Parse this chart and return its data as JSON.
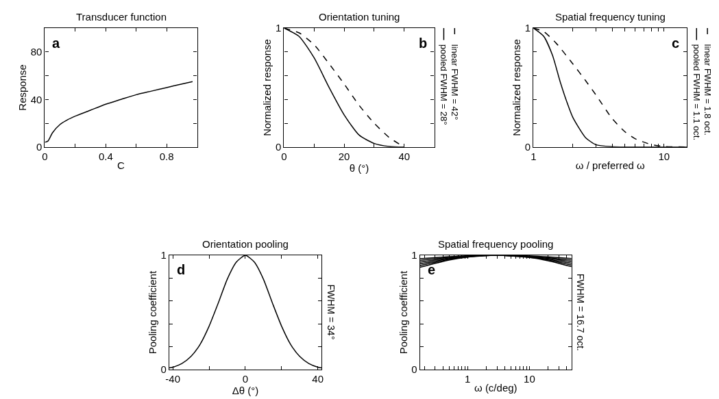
{
  "chart_data": [
    {
      "type": "line",
      "title": "Transducer function",
      "xlabel": "C",
      "ylabel": "Response",
      "xlim": [
        0,
        1
      ],
      "xticks": [
        0,
        {
          "value": 0.2,
          "label": null
        },
        0.4,
        {
          "value": 0.6,
          "label": null
        },
        0.8,
        {
          "value": 1,
          "label": null
        }
      ],
      "ylim": [
        0,
        100
      ],
      "yticks": [
        0,
        {
          "value": 20,
          "label": null
        },
        40,
        {
          "value": 60,
          "label": null
        },
        80,
        {
          "value": 100,
          "label": null
        }
      ],
      "annotations": [
        "a"
      ],
      "series": [
        {
          "color": "#000000",
          "line_style": "solid",
          "x": [
            0,
            0.02,
            0.05,
            0.1,
            0.15,
            0.2,
            0.3,
            0.4,
            0.5,
            0.6,
            0.7,
            0.8,
            0.9,
            0.97
          ],
          "values": [
            4,
            5,
            12,
            19,
            23,
            26,
            31,
            36,
            40,
            44,
            47,
            50,
            53,
            55
          ]
        }
      ]
    },
    {
      "type": "line",
      "title": "Orientation tuning",
      "xlabel": "θ (°)",
      "ylabel": "Normalized response",
      "legend": "right",
      "xlim": [
        0,
        50
      ],
      "xticks": [
        0,
        {
          "value": 10,
          "label": null
        },
        20,
        {
          "value": 30,
          "label": null
        },
        40,
        {
          "value": 50,
          "label": null
        }
      ],
      "ylim": [
        0,
        1
      ],
      "yticks": [
        0,
        {
          "value": 0.2,
          "label": null
        },
        {
          "value": 0.4,
          "label": null
        },
        {
          "value": 0.6,
          "label": null
        },
        {
          "value": 0.8,
          "label": null
        },
        1
      ],
      "annotations": [
        "b"
      ],
      "series": [
        {
          "name": "pooled FWHM = 28°",
          "color": "#000000",
          "line_style": "solid",
          "x": [
            0,
            5,
            10,
            15,
            20,
            25,
            30,
            35,
            40
          ],
          "values": [
            1,
            0.93,
            0.75,
            0.5,
            0.27,
            0.1,
            0.03,
            0.005,
            0
          ]
        },
        {
          "name": "linear FWHM = 42°",
          "color": "#000000",
          "line_style": "dashed",
          "x": [
            0,
            5,
            10,
            15,
            20,
            25,
            30,
            35,
            40
          ],
          "values": [
            1,
            0.96,
            0.86,
            0.7,
            0.53,
            0.35,
            0.2,
            0.08,
            0
          ]
        }
      ]
    },
    {
      "type": "line",
      "title": "Spatial frequency tuning",
      "xlabel": "ω / preferred ω",
      "ylabel": "Normalized response",
      "legend": "right",
      "log": "x",
      "xlim": [
        1,
        15
      ],
      "xticks": [
        1,
        {
          "value": 2,
          "label": null
        },
        {
          "value": 3,
          "label": null
        },
        {
          "value": 4,
          "label": null
        },
        {
          "value": 5,
          "label": null
        },
        {
          "value": 6,
          "label": null
        },
        {
          "value": 7,
          "label": null
        },
        {
          "value": 8,
          "label": null
        },
        {
          "value": 9,
          "label": null
        },
        10
      ],
      "ylim": [
        0,
        1
      ],
      "yticks": [
        0,
        {
          "value": 0.2,
          "label": null
        },
        {
          "value": 0.4,
          "label": null
        },
        {
          "value": 0.6,
          "label": null
        },
        {
          "value": 0.8,
          "label": null
        },
        1
      ],
      "annotations": [
        "c"
      ],
      "series": [
        {
          "name": "pooled FWHM = 1.1 oct.",
          "color": "#000000",
          "line_style": "solid",
          "x": [
            1,
            1.2,
            1.4,
            1.6,
            1.8,
            2,
            2.5,
            3,
            4,
            5,
            10,
            15
          ],
          "values": [
            1,
            0.93,
            0.77,
            0.55,
            0.38,
            0.25,
            0.08,
            0.02,
            0.003,
            0,
            0,
            0
          ]
        },
        {
          "name": "linear FWHM = 1.8 oct.",
          "color": "#000000",
          "line_style": "dashed",
          "x": [
            1,
            1.2,
            1.5,
            2,
            2.5,
            3,
            4,
            5,
            6,
            8,
            10,
            15
          ],
          "values": [
            1,
            0.97,
            0.87,
            0.7,
            0.56,
            0.44,
            0.24,
            0.13,
            0.07,
            0.02,
            0.005,
            0
          ]
        }
      ]
    },
    {
      "type": "line",
      "title": "Orientation pooling",
      "xlabel": "Δθ (°)",
      "ylabel": "Pooling coefficient",
      "xlim": [
        -42,
        42
      ],
      "xticks": [
        -40,
        {
          "value": -20,
          "label": null
        },
        0,
        {
          "value": 20,
          "label": null
        },
        40
      ],
      "ylim": [
        0,
        1
      ],
      "yticks": [
        0,
        {
          "value": 0.2,
          "label": null
        },
        {
          "value": 0.4,
          "label": null
        },
        {
          "value": 0.6,
          "label": null
        },
        {
          "value": 0.8,
          "label": null
        },
        1
      ],
      "annotations": [
        "d",
        "FWHM = 34°"
      ],
      "series": [
        {
          "color": "#000000",
          "line_style": "solid",
          "x": [
            -42,
            -40,
            -35,
            -30,
            -25,
            -20,
            -15,
            -10,
            -5,
            0,
            5,
            10,
            15,
            20,
            25,
            30,
            35,
            40,
            42
          ],
          "values": [
            0.015,
            0.021,
            0.053,
            0.115,
            0.22,
            0.38,
            0.58,
            0.79,
            0.94,
            1,
            0.94,
            0.79,
            0.58,
            0.38,
            0.22,
            0.115,
            0.053,
            0.021,
            0.015
          ]
        }
      ]
    },
    {
      "type": "line",
      "title": "Spatial frequency pooling",
      "xlabel": "ω (c/deg)",
      "ylabel": "Pooling coefficient",
      "log": "x",
      "xlim": [
        0.17,
        48
      ],
      "xticks": [
        {
          "value": 0.2,
          "label": null
        },
        {
          "value": 0.3,
          "label": null
        },
        {
          "value": 0.4,
          "label": null
        },
        {
          "value": 0.5,
          "label": null
        },
        {
          "value": 0.6,
          "label": null
        },
        {
          "value": 0.7,
          "label": null
        },
        {
          "value": 0.8,
          "label": null
        },
        {
          "value": 0.9,
          "label": null
        },
        1,
        {
          "value": 2,
          "label": null
        },
        {
          "value": 3,
          "label": null
        },
        {
          "value": 4,
          "label": null
        },
        {
          "value": 5,
          "label": null
        },
        {
          "value": 6,
          "label": null
        },
        {
          "value": 7,
          "label": null
        },
        {
          "value": 8,
          "label": null
        },
        {
          "value": 9,
          "label": null
        },
        10,
        {
          "value": 20,
          "label": null
        },
        {
          "value": 30,
          "label": null
        },
        {
          "value": 40,
          "label": null
        }
      ],
      "ylim": [
        0,
        1
      ],
      "yticks": [
        0,
        {
          "value": 0.2,
          "label": null
        },
        {
          "value": 0.4,
          "label": null
        },
        {
          "value": 0.6,
          "label": null
        },
        {
          "value": 0.8,
          "label": null
        },
        1
      ],
      "annotations": [
        "e",
        "FWHM = 16.7 oct."
      ],
      "series": [
        {
          "color": "#000000",
          "line_style": "solid",
          "x": [
            0.17,
            0.5,
            1,
            3,
            10,
            20,
            48
          ],
          "values": [
            0.97,
            0.988,
            0.996,
            1,
            0.995,
            0.987,
            0.972
          ]
        },
        {
          "color": "#000000",
          "line_style": "solid",
          "x": [
            0.17,
            0.5,
            1,
            3,
            10,
            20,
            48
          ],
          "values": [
            0.955,
            0.982,
            0.993,
            1,
            0.992,
            0.98,
            0.958
          ]
        },
        {
          "color": "#000000",
          "line_style": "solid",
          "x": [
            0.17,
            0.5,
            1,
            3,
            10,
            20,
            48
          ],
          "values": [
            0.94,
            0.976,
            0.991,
            1,
            0.989,
            0.973,
            0.944
          ]
        },
        {
          "color": "#000000",
          "line_style": "solid",
          "x": [
            0.17,
            0.5,
            1,
            3,
            10,
            20,
            48
          ],
          "values": [
            0.925,
            0.97,
            0.989,
            1,
            0.986,
            0.966,
            0.93
          ]
        },
        {
          "color": "#000000",
          "line_style": "solid",
          "x": [
            0.17,
            0.5,
            1,
            3,
            10,
            20,
            48
          ],
          "values": [
            0.91,
            0.964,
            0.986,
            1,
            0.983,
            0.96,
            0.915
          ]
        },
        {
          "color": "#000000",
          "line_style": "solid",
          "x": [
            0.17,
            0.5,
            1,
            3,
            10,
            20,
            48
          ],
          "values": [
            0.895,
            0.958,
            0.984,
            1,
            0.981,
            0.953,
            0.901
          ]
        }
      ]
    }
  ]
}
